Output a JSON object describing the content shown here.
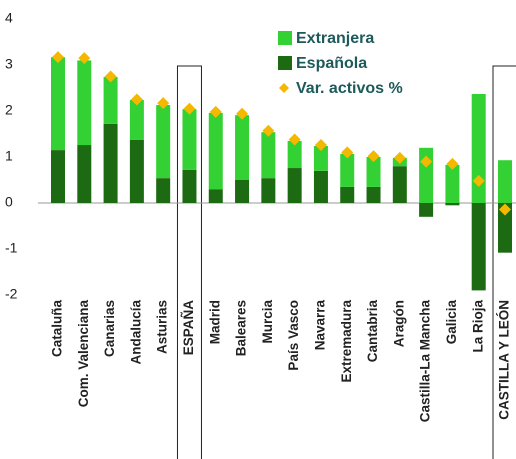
{
  "chart_data": {
    "type": "bar",
    "categories": [
      "Cataluña",
      "Com. Valenciana",
      "Canarias",
      "Andalucía",
      "Asturias",
      "ESPAÑA",
      "Madrid",
      "Baleares",
      "Murcia",
      "País Vasco",
      "Navarra",
      "Extremadura",
      "Cantabria",
      "Aragón",
      "Castilla-La Mancha",
      "Galicia",
      "La Rioja",
      "CASTILLA Y LEÓN"
    ],
    "series": [
      {
        "name": "Extranjera",
        "color": "#33d133",
        "values": [
          2.02,
          1.84,
          1.02,
          0.87,
          1.59,
          1.32,
          1.66,
          1.41,
          1.0,
          0.59,
          0.54,
          0.72,
          0.65,
          0.18,
          1.2,
          0.83,
          2.37,
          0.93
        ]
      },
      {
        "name": "Española",
        "color": "#1c6a12",
        "values": [
          1.15,
          1.26,
          1.72,
          1.37,
          0.54,
          0.72,
          0.3,
          0.5,
          0.54,
          0.76,
          0.7,
          0.35,
          0.35,
          0.8,
          -0.3,
          -0.05,
          -1.9,
          -1.08
        ]
      },
      {
        "name": "Var. activos %",
        "type": "scatter",
        "color": "#f5b800",
        "values": [
          3.17,
          3.15,
          2.75,
          2.25,
          2.17,
          2.05,
          1.98,
          1.94,
          1.57,
          1.38,
          1.26,
          1.1,
          1.02,
          0.98,
          0.9,
          0.85,
          0.48,
          -0.14
        ]
      }
    ],
    "ylim": [
      -2.25,
      4.1
    ],
    "yticks": [
      -2,
      -1,
      0,
      1,
      2,
      3,
      4
    ],
    "stacked": true
  }
}
